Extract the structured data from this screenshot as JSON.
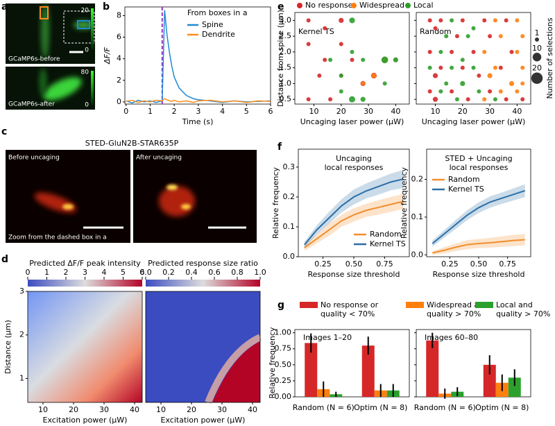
{
  "panel_labels": [
    "a",
    "b",
    "c",
    "d",
    "e",
    "f",
    "g"
  ],
  "images": {
    "a": [
      {
        "label": "GCaMP6s-before",
        "colorbar": [
          "20",
          "0"
        ]
      },
      {
        "label": "GCaMP6s-after",
        "colorbar": [
          "80",
          "0"
        ]
      }
    ],
    "c": {
      "title": "STED-GluN2B-STAR635P",
      "panels": [
        "Before uncaging",
        "After uncaging"
      ],
      "caption": "Zoom from the dashed box in a"
    }
  },
  "chart_data": [
    {
      "type": "line",
      "legend_title": "From boxes in a",
      "xlabel": "Time (s)",
      "ylabel": "ΔF/F",
      "xlim": [
        -0.05,
        6
      ],
      "ylim": [
        -0.2,
        8.8
      ],
      "xticks": [
        0,
        1,
        2,
        3,
        4,
        5,
        6
      ],
      "yticks": [
        0,
        2,
        4,
        6,
        8
      ],
      "stimulus_x": 1.5,
      "stimulus_color": "#9b30c8",
      "x": [
        0,
        0.25,
        0.5,
        0.75,
        1,
        1.25,
        1.5,
        1.6,
        1.7,
        1.8,
        1.9,
        2.0,
        2.2,
        2.5,
        2.8,
        3,
        3.5,
        4,
        4.5,
        5,
        5.5,
        6
      ],
      "series": [
        {
          "name": "Spine",
          "color": "#1f8ad4",
          "values": [
            0.1,
            -0.1,
            0.15,
            0,
            0.1,
            -0.05,
            0.1,
            8.5,
            6.2,
            4.6,
            3.3,
            2.3,
            1.3,
            0.6,
            0.3,
            0.2,
            0.1,
            -0.05,
            0.1,
            0,
            0.05,
            0.1
          ]
        },
        {
          "name": "Dendrite",
          "color": "#ff8c1a",
          "values": [
            0.05,
            0.15,
            -0.05,
            0.1,
            0,
            0.15,
            0.1,
            0.3,
            0.2,
            0.1,
            0.05,
            0.15,
            0,
            0.1,
            -0.05,
            0.1,
            0.15,
            0,
            0.1,
            -0.05,
            0.1,
            0.05
          ]
        }
      ]
    },
    {
      "type": "bubble",
      "xlabel": "Uncaging laser power (μW)",
      "ylabel": "Distance from spine (μm)",
      "series": [
        {
          "name": "No response",
          "color": "#d62728"
        },
        {
          "name": "Widespread",
          "color": "#ff7f0e"
        },
        {
          "name": "Local",
          "color": "#2ca02c"
        }
      ],
      "size_legend": {
        "title": "Number of selections",
        "sizes": [
          1,
          10,
          20
        ]
      },
      "xlim": [
        3,
        45
      ],
      "ylim": [
        0.35,
        3.25
      ],
      "xticks": [
        10,
        20,
        30,
        40
      ],
      "yticks": [
        0.5,
        {
          "value": 1,
          "label": "1.0"
        },
        1.5,
        {
          "value": 2,
          "label": "2.0"
        },
        2.5,
        {
          "value": 3,
          "label": "3.0"
        }
      ],
      "panels": [
        {
          "annotation": "Kernel TS",
          "series": [
            {
              "x": [
                8,
                14,
                20,
                8,
                20,
                14,
                24,
                12,
                20,
                28,
                8,
                16,
                32,
                36
              ],
              "y": [
                3.0,
                2.75,
                3.0,
                2.25,
                2.25,
                1.75,
                1.75,
                1.25,
                1.25,
                1.0,
                0.5,
                0.5,
                1.25,
                1.75
              ],
              "sizes": [
                1,
                1,
                2,
                1,
                1,
                1,
                1,
                1,
                1,
                2,
                1,
                1,
                3,
                2
              ]
            },
            {
              "x": [
                36,
                32,
                28,
                40
              ],
              "y": [
                1.75,
                1.25,
                1.0,
                1.75
              ],
              "sizes": [
                4,
                2,
                1,
                1
              ]
            },
            {
              "x": [
                24,
                24,
                16,
                36,
                28,
                40,
                20,
                24,
                28,
                20,
                36
              ],
              "y": [
                3.0,
                2.0,
                1.75,
                1.75,
                1.75,
                1.75,
                1.25,
                0.5,
                0.5,
                0.75,
                1.0
              ],
              "sizes": [
                3,
                1,
                1,
                5,
                1,
                2,
                1,
                4,
                2,
                1,
                1
              ]
            }
          ]
        },
        {
          "annotation": "Random",
          "series": [
            {
              "x": [
                8,
                12,
                20,
                28,
                36,
                10,
                18,
                30,
                8,
                16,
                24,
                38,
                12,
                20,
                34,
                10,
                26,
                8,
                16,
                30,
                10,
                22,
                36,
                42
              ],
              "y": [
                3.0,
                3.0,
                3.0,
                3.0,
                3.0,
                2.75,
                2.5,
                2.5,
                2.0,
                2.0,
                2.0,
                2.0,
                1.5,
                1.5,
                1.5,
                1.25,
                1.25,
                0.75,
                0.75,
                0.75,
                0.5,
                0.5,
                0.5,
                0.5
              ],
              "sizes": [
                1,
                1,
                1,
                1,
                1,
                1,
                1,
                1,
                1,
                1,
                1,
                1,
                1,
                1,
                1,
                2,
                1,
                1,
                1,
                1,
                2,
                1,
                1,
                1
              ]
            },
            {
              "x": [
                32,
                40,
                34,
                42,
                28,
                40,
                32,
                42,
                30,
                38,
                34,
                42,
                28,
                40
              ],
              "y": [
                3.0,
                3.0,
                2.5,
                2.5,
                2.0,
                2.0,
                1.5,
                1.5,
                1.25,
                1.0,
                0.75,
                1.0,
                0.5,
                0.75
              ],
              "sizes": [
                1,
                1,
                1,
                1,
                1,
                1,
                1,
                1,
                2,
                2,
                1,
                1,
                1,
                1
              ]
            },
            {
              "x": [
                16,
                24,
                14,
                22,
                12,
                20,
                8,
                16,
                24,
                14,
                20,
                12,
                26,
                18,
                32
              ],
              "y": [
                3.0,
                2.75,
                2.5,
                2.5,
                2.0,
                1.75,
                1.5,
                1.5,
                1.5,
                1.0,
                1.0,
                0.75,
                0.75,
                0.5,
                0.5
              ],
              "sizes": [
                1,
                1,
                1,
                1,
                1,
                1,
                1,
                1,
                1,
                1,
                2,
                1,
                1,
                1,
                1
              ]
            }
          ]
        }
      ]
    },
    {
      "type": "heatmap",
      "title": "Predicted ΔF/F peak intensity",
      "xlabel": "Excitation power (μW)",
      "ylabel": "Distance (μm)",
      "colorbar_lim": [
        0,
        6
      ],
      "colorbar_ticks": [
        0,
        1,
        2,
        3,
        4,
        5,
        6
      ],
      "xlim": [
        5,
        42.5
      ],
      "ylim": [
        0.45,
        3
      ],
      "xticks": [
        10,
        20,
        30,
        40
      ],
      "yticks": [
        1,
        2,
        3
      ]
    },
    {
      "type": "heatmap",
      "title": "Predicted response size ratio",
      "xlabel": "Excitation power (μW)",
      "colorbar_lim": [
        0,
        1
      ],
      "colorbar_ticks": [
        {
          "value": 0,
          "label": "0.0"
        },
        0.2,
        0.4,
        0.6,
        0.8,
        {
          "value": 1,
          "label": "1.0"
        }
      ],
      "xlim": [
        5,
        42.5
      ],
      "ylim": [
        0.45,
        3
      ],
      "xticks": [
        10,
        20,
        30,
        40
      ]
    },
    {
      "type": "line",
      "title": [
        "Uncaging",
        "local responses"
      ],
      "xlabel": "Response size threshold",
      "ylabel": "Relative frequency",
      "legend": "lower right",
      "x": [
        0.1,
        0.2,
        0.3,
        0.4,
        0.5,
        0.6,
        0.7,
        0.8,
        0.9
      ],
      "xlim": [
        0.05,
        0.95
      ],
      "xticks": [
        0.25,
        {
          "value": 0.5,
          "label": "0.50"
        },
        0.75
      ],
      "ylim": [
        0,
        0.36
      ],
      "yticks": [
        {
          "value": 0,
          "label": "0.0"
        },
        0.1,
        0.2,
        0.3
      ],
      "series": [
        {
          "name": "Random",
          "color": "#f28e2b",
          "values": [
            0.03,
            0.06,
            0.09,
            0.12,
            0.14,
            0.155,
            0.165,
            0.175,
            0.185
          ],
          "errors": [
            0.01,
            0.015,
            0.02,
            0.02,
            0.022,
            0.022,
            0.024,
            0.025,
            0.025
          ]
        },
        {
          "name": "Kernel TS",
          "color": "#2b6ea6",
          "values": [
            0.04,
            0.09,
            0.13,
            0.17,
            0.2,
            0.22,
            0.235,
            0.25,
            0.26
          ],
          "errors": [
            0.01,
            0.015,
            0.02,
            0.022,
            0.025,
            0.025,
            0.027,
            0.028,
            0.03
          ]
        }
      ]
    },
    {
      "type": "line",
      "title": [
        "STED + Uncaging",
        "local responses"
      ],
      "xlabel": "Response size threshold",
      "ylabel": "Relative frequency",
      "legend": "upper left",
      "x": [
        0.1,
        0.2,
        0.3,
        0.4,
        0.5,
        0.6,
        0.7,
        0.8,
        0.9
      ],
      "xlim": [
        0.05,
        0.95
      ],
      "xticks": [
        0.25,
        {
          "value": 0.5,
          "label": "0.50"
        },
        0.75
      ],
      "ylim": [
        -0.005,
        0.28
      ],
      "yticks": [
        {
          "value": 0,
          "label": "0.0"
        },
        0.1,
        0.2
      ],
      "series": [
        {
          "name": "Random",
          "color": "#f28e2b",
          "values": [
            0.005,
            0.012,
            0.02,
            0.027,
            0.03,
            0.032,
            0.035,
            0.038,
            0.04
          ],
          "errors": [
            0.005,
            0.008,
            0.01,
            0.012,
            0.012,
            0.013,
            0.014,
            0.015,
            0.015
          ]
        },
        {
          "name": "Kernel TS",
          "color": "#2b6ea6",
          "values": [
            0.03,
            0.055,
            0.08,
            0.105,
            0.125,
            0.14,
            0.15,
            0.16,
            0.17
          ],
          "errors": [
            0.008,
            0.01,
            0.012,
            0.013,
            0.014,
            0.015,
            0.015,
            0.016,
            0.017
          ]
        }
      ]
    },
    {
      "type": "bar",
      "ylabel": "Relative frequency",
      "series": [
        {
          "name": [
            "No response or",
            "quality < 70%"
          ],
          "color": "#d62728"
        },
        {
          "name": [
            "Widespread and",
            "quality > 70%"
          ],
          "color": "#ff7f0e"
        },
        {
          "name": [
            "Local and",
            "quality > 70%"
          ],
          "color": "#2ca02c"
        }
      ],
      "ylim": [
        0,
        1.05
      ],
      "yticks": [
        {
          "value": 0,
          "label": "0.00"
        },
        0.25,
        {
          "value": 0.5,
          "label": "0.50"
        },
        0.75,
        {
          "value": 1,
          "label": "1.00"
        }
      ],
      "panels": [
        {
          "annotation": "Images 1–20",
          "categories": [
            "Random (N = 6)",
            "Optim (N = 8)"
          ],
          "values": [
            [
              0.84,
              0.8
            ],
            [
              0.12,
              0.1
            ],
            [
              0.04,
              0.1
            ]
          ],
          "errors": [
            [
              0.15,
              0.14
            ],
            [
              0.12,
              0.1
            ],
            [
              0.04,
              0.1
            ]
          ]
        },
        {
          "annotation": "Images 60–80",
          "categories": [
            "Random (N = 6)",
            "Optim (N = 8)"
          ],
          "values": [
            [
              0.88,
              0.5
            ],
            [
              0.05,
              0.22
            ],
            [
              0.08,
              0.3
            ]
          ],
          "errors": [
            [
              0.12,
              0.15
            ],
            [
              0.08,
              0.13
            ],
            [
              0.07,
              0.13
            ]
          ]
        }
      ]
    }
  ]
}
